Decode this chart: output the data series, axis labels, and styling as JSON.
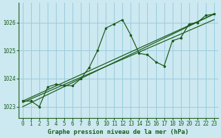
{
  "title": "Graphe pression niveau de la mer (hPa)",
  "bg_color": "#cce8f0",
  "grid_color": "#99ccdd",
  "line_color": "#1a5c1a",
  "xlim": [
    -0.5,
    23.5
  ],
  "ylim": [
    1022.6,
    1026.7
  ],
  "yticks": [
    1023,
    1024,
    1025,
    1026
  ],
  "xticks": [
    0,
    1,
    2,
    3,
    4,
    5,
    6,
    7,
    8,
    9,
    10,
    11,
    12,
    13,
    14,
    15,
    16,
    17,
    18,
    19,
    20,
    21,
    22,
    23
  ],
  "series1_x": [
    0,
    1,
    2,
    3,
    4,
    5,
    6,
    7,
    8,
    9,
    10,
    11,
    12,
    13,
    14,
    15,
    16,
    17,
    18,
    19,
    20,
    21,
    22,
    23
  ],
  "series1_y": [
    1023.2,
    1023.2,
    1023.0,
    1023.7,
    1023.8,
    1023.75,
    1023.75,
    1024.0,
    1024.4,
    1025.0,
    1025.8,
    1025.95,
    1026.1,
    1025.55,
    1024.9,
    1024.85,
    1024.6,
    1024.45,
    1025.35,
    1025.45,
    1025.95,
    1026.0,
    1026.25,
    1026.3
  ],
  "line2_x": [
    0,
    23
  ],
  "line2_y": [
    1023.2,
    1026.3
  ],
  "line3_x": [
    0,
    23
  ],
  "line3_y": [
    1023.15,
    1026.1
  ],
  "line4_x": [
    0,
    23
  ],
  "line4_y": [
    1023.0,
    1026.3
  ],
  "xlabel_fontsize": 6.5,
  "tick_fontsize": 5.5,
  "font_family": "monospace"
}
